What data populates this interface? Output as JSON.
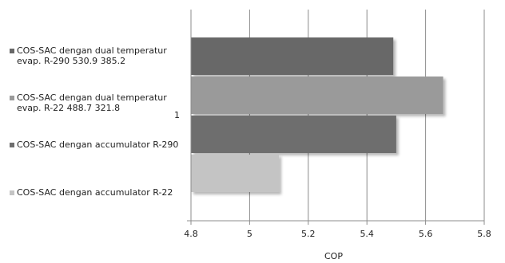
{
  "chart_data": {
    "type": "bar",
    "orientation": "horizontal",
    "categories": [
      "1"
    ],
    "xlabel": "COP",
    "ylabel": "",
    "xlim": [
      4.8,
      5.8
    ],
    "xticks": [
      "4.8",
      "5",
      "5.2",
      "5.4",
      "5.6",
      "5.8"
    ],
    "grid": "vertical",
    "legend_position": "left",
    "series": [
      {
        "name": "COS-SAC dengan dual temperatur evap. R-290 530.9 385.2",
        "value": 5.49,
        "color": "#686868"
      },
      {
        "name": "COS-SAC dengan dual temperatur evap. R-22 488.7 321.8",
        "value": 5.66,
        "color": "#9a9a9a"
      },
      {
        "name": "COS-SAC dengan accumulator R-290",
        "value": 5.5,
        "color": "#6e6e6e"
      },
      {
        "name": "COS-SAC dengan accumulator R-22",
        "value": 5.1,
        "color": "#c4c4c4"
      }
    ]
  }
}
